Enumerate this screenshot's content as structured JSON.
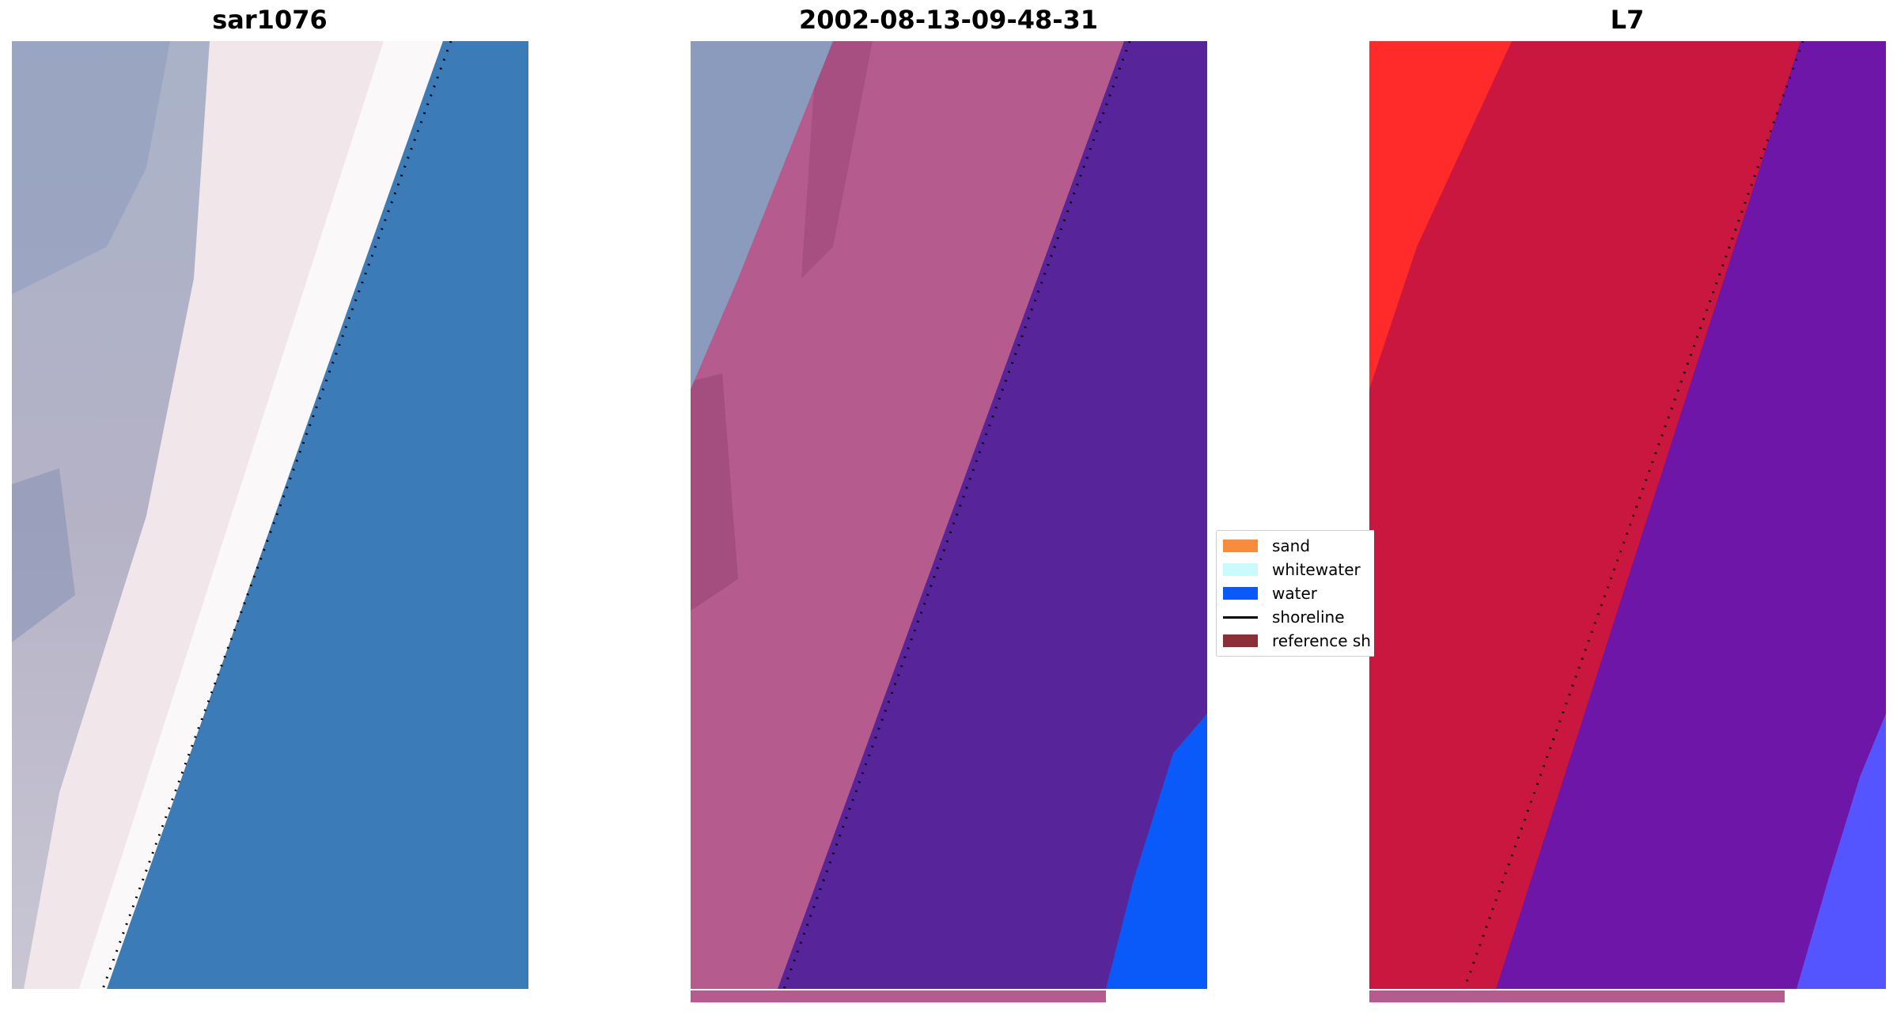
{
  "panels": [
    {
      "title": "sar1076"
    },
    {
      "title": "2002-08-13-09-48-31"
    },
    {
      "title": "L7"
    }
  ],
  "legend": {
    "items": [
      {
        "label": "sand",
        "color": "#f98c3b"
      },
      {
        "label": "whitewater",
        "color": "#c9fbfc"
      },
      {
        "label": "water",
        "color": "#0a5afa"
      },
      {
        "label": "shoreline",
        "color": "#000000"
      },
      {
        "label": "reference sh",
        "color": "#8c2f36"
      }
    ]
  },
  "colors": {
    "rgb_land": "#a9b4cc",
    "rgb_beach": "#f1e6ea",
    "rgb_sea": "#3b7bb8",
    "class_land": "#b65b8d",
    "class_sea": "#58249a",
    "class_water": "#0a5afa",
    "swir_land": "#c9173f",
    "swir_sea": "#6e16a8",
    "swir_bright": "#ff2a2a",
    "swir_water": "#5555ff"
  }
}
